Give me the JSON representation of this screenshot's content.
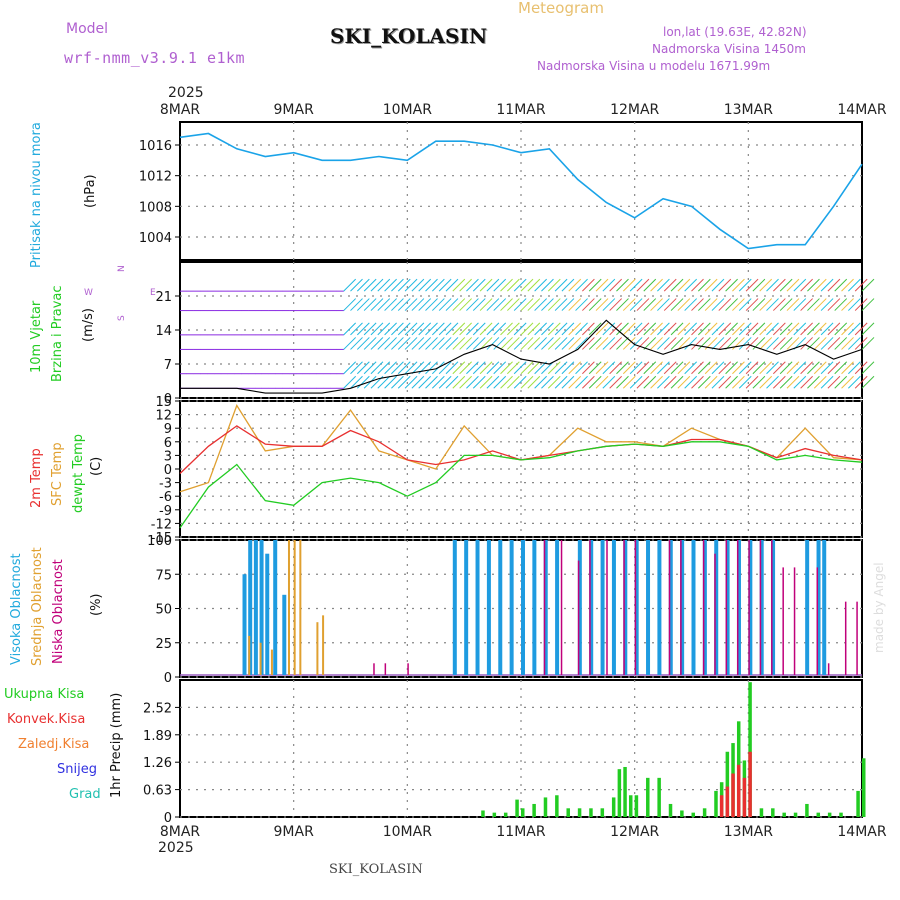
{
  "header": {
    "title": "SKI_KOLASIN",
    "subtitle": "Meteogram",
    "model_label": "Model",
    "model_name": "wrf-nmm_v3.9.1 e1km",
    "lonlat": "lon,lat (19.63E, 42.82N)",
    "elevation": "Nadmorska Visina 1450m",
    "model_elevation": "Nadmorska Visina u modelu 1671.99m",
    "year_top": "2025",
    "year_bottom": "2025",
    "footer": "SKI_KOLASIN",
    "credit": "made by Angel"
  },
  "x_axis": {
    "labels": [
      "8MAR",
      "9MAR",
      "10MAR",
      "11MAR",
      "12MAR",
      "13MAR",
      "14MAR"
    ]
  },
  "panels": {
    "pressure": {
      "label": "Pritisak na nivou mora",
      "unit": "(hPa)"
    },
    "wind": {
      "label1": "10m Vjetar",
      "label2": "Brzina i Pravac",
      "unit": "(m/s)",
      "compass_w": "W",
      "compass_e": "E",
      "compass_n": "N",
      "compass_s": "S"
    },
    "temp": {
      "label1": "2m Temp",
      "label2": "SFC Temp",
      "label3": "dewpt Temp",
      "unit": "(C)"
    },
    "cloud": {
      "label1": "Visoka Oblacnost",
      "label2": "Srednja Oblacnost",
      "label3": "Niska Oblacnost",
      "unit": "(%)"
    },
    "precip": {
      "unit": "1hr Precip (mm)",
      "legend": [
        "Ukupna Kisa",
        "Konvek.Kisa",
        "Zaledj.Kisa",
        "Snijeg",
        "Grad"
      ]
    }
  },
  "colors": {
    "pressure": "#1aa3e8",
    "t2m": "#e83030",
    "sfc": "#e0a030",
    "dew": "#22cc22",
    "high_cloud": "#1e9be0",
    "mid_cloud": "#e0a030",
    "low_cloud": "#c0007a",
    "total_rain": "#22cc22",
    "conv_rain": "#e83030",
    "frz_rain": "#f08030",
    "snow": "#3030e0",
    "hail": "#20c0b0",
    "wind_speed": "#000000"
  },
  "chart_data": [
    {
      "type": "line",
      "title": "",
      "ylabel": "Pritisak na nivou mora (hPa)",
      "ylim": [
        1001,
        1019
      ],
      "yticks": [
        1004,
        1008,
        1012,
        1016
      ],
      "x_days": [
        0,
        0.25,
        0.5,
        0.75,
        1,
        1.25,
        1.5,
        1.75,
        2,
        2.25,
        2.5,
        2.75,
        3,
        3.25,
        3.5,
        3.75,
        4,
        4.25,
        4.5,
        4.75,
        5,
        5.25,
        5.5,
        5.75,
        6
      ],
      "series": [
        {
          "name": "",
          "values": [
            1017,
            1017.5,
            1015.5,
            1014.5,
            1015,
            1014,
            1014,
            1014.5,
            1014,
            1016.5,
            1016.5,
            1016,
            1015,
            1015.5,
            1011.5,
            1008.5,
            1006.5,
            1009,
            1008,
            1005,
            1002.5,
            1003,
            1003,
            1008,
            1013.5
          ]
        }
      ]
    },
    {
      "type": "line",
      "title": "",
      "ylabel": "10m Vjetar Brzina i Pravac (m/s)",
      "ylim": [
        0,
        28
      ],
      "yticks": [
        0,
        7,
        14,
        21
      ],
      "x_days": [
        0,
        0.25,
        0.5,
        0.75,
        1,
        1.25,
        1.5,
        1.75,
        2,
        2.25,
        2.5,
        2.75,
        3,
        3.25,
        3.5,
        3.75,
        4,
        4.25,
        4.5,
        4.75,
        5,
        5.25,
        5.5,
        5.75,
        6
      ],
      "series": [
        {
          "name": "",
          "values": [
            2,
            2,
            2,
            1,
            1,
            1,
            2,
            4,
            5,
            6,
            9,
            11,
            8,
            7,
            10,
            16,
            11,
            9,
            11,
            10,
            11,
            9,
            11,
            8,
            10
          ]
        }
      ]
    },
    {
      "type": "line",
      "title": "",
      "ylabel": "Temp (C)",
      "ylim": [
        -15,
        15
      ],
      "yticks": [
        -15,
        -12,
        -9,
        -6,
        -3,
        0,
        3,
        6,
        9,
        12,
        15
      ],
      "x_days": [
        0,
        0.25,
        0.5,
        0.75,
        1,
        1.25,
        1.5,
        1.75,
        2,
        2.25,
        2.5,
        2.75,
        3,
        3.25,
        3.5,
        3.75,
        4,
        4.25,
        4.5,
        4.75,
        5,
        5.25,
        5.5,
        5.75,
        6
      ],
      "series": [
        {
          "name": "2m Temp",
          "values": [
            -1,
            5,
            9.5,
            5.5,
            5,
            5,
            8.5,
            6,
            2,
            1,
            2,
            4,
            2,
            3,
            4,
            5,
            5.5,
            5,
            6.5,
            6.5,
            5,
            2.5,
            4.5,
            3,
            2
          ]
        },
        {
          "name": "SFC Temp",
          "values": [
            -5,
            -3,
            14,
            4,
            5,
            5,
            13,
            4,
            2,
            0,
            9.5,
            3,
            2,
            3,
            9,
            6,
            6,
            5,
            9,
            6.5,
            5,
            2.5,
            9,
            2.5,
            2
          ]
        },
        {
          "name": "dewpt Temp",
          "values": [
            -13,
            -4,
            1,
            -7,
            -8,
            -3,
            -2,
            -3,
            -6,
            -3,
            3,
            3,
            2,
            2.5,
            4,
            5,
            5.5,
            5,
            6,
            6,
            5,
            2,
            3,
            2,
            1.5
          ]
        }
      ]
    },
    {
      "type": "bar",
      "title": "",
      "ylabel": "Oblacnost (%)",
      "ylim": [
        0,
        100
      ],
      "yticks": [
        0,
        25,
        50,
        75,
        100
      ],
      "series": [
        {
          "name": "Visoka Oblacnost",
          "x_days": [
            0.55,
            0.6,
            0.65,
            0.7,
            0.75,
            0.82,
            0.9,
            2.4,
            2.5,
            2.6,
            2.7,
            2.8,
            2.9,
            3.0,
            3.1,
            3.2,
            3.3,
            3.5,
            3.6,
            3.7,
            3.8,
            3.9,
            4.0,
            4.1,
            4.2,
            4.3,
            4.4,
            4.5,
            4.6,
            4.7,
            4.8,
            4.9,
            5.0,
            5.1,
            5.2,
            5.5,
            5.6,
            5.65
          ],
          "values": [
            75,
            100,
            100,
            100,
            90,
            100,
            60,
            100,
            100,
            100,
            100,
            100,
            100,
            100,
            100,
            100,
            100,
            100,
            100,
            100,
            100,
            100,
            100,
            100,
            100,
            100,
            100,
            100,
            100,
            100,
            100,
            100,
            100,
            100,
            100,
            100,
            100,
            100
          ]
        },
        {
          "name": "Srednja Oblacnost",
          "x_days": [
            0.6,
            0.7,
            0.8,
            0.95,
            1.0,
            1.05,
            1.2,
            1.25
          ],
          "values": [
            30,
            25,
            20,
            100,
            100,
            100,
            40,
            45
          ]
        },
        {
          "name": "Niska Oblacnost",
          "x_days": [
            1.7,
            1.8,
            2.0,
            3.2,
            3.35,
            3.5,
            3.6,
            3.75,
            3.9,
            4.0,
            4.3,
            4.4,
            4.6,
            4.7,
            4.8,
            4.9,
            5.0,
            5.1,
            5.2,
            5.3,
            5.4,
            5.6,
            5.7,
            5.85,
            5.95
          ],
          "values": [
            10,
            10,
            10,
            100,
            100,
            85,
            100,
            100,
            100,
            100,
            100,
            100,
            100,
            90,
            100,
            100,
            100,
            100,
            100,
            80,
            80,
            80,
            10,
            55,
            55
          ]
        }
      ]
    },
    {
      "type": "bar",
      "title": "",
      "ylabel": "1hr Precip (mm)",
      "ylim": [
        0,
        3.15
      ],
      "yticks": [
        0,
        0.63,
        1.26,
        1.89,
        2.52
      ],
      "series": [
        {
          "name": "Ukupna Kisa",
          "x_days": [
            2.65,
            2.75,
            2.85,
            2.95,
            3.0,
            3.1,
            3.2,
            3.3,
            3.4,
            3.5,
            3.6,
            3.7,
            3.8,
            3.85,
            3.9,
            3.95,
            4.0,
            4.1,
            4.2,
            4.3,
            4.4,
            4.5,
            4.6,
            4.7,
            4.75,
            4.8,
            4.85,
            4.9,
            4.95,
            5.0,
            5.1,
            5.2,
            5.3,
            5.4,
            5.5,
            5.6,
            5.7,
            5.8,
            5.95,
            6.0
          ],
          "values": [
            0.15,
            0.1,
            0.1,
            0.4,
            0.2,
            0.3,
            0.45,
            0.5,
            0.2,
            0.2,
            0.2,
            0.2,
            0.45,
            1.1,
            1.15,
            0.5,
            0.5,
            0.9,
            0.9,
            0.3,
            0.15,
            0.1,
            0.2,
            0.6,
            0.8,
            1.5,
            1.7,
            2.2,
            1.3,
            3.1,
            0.2,
            0.2,
            0.1,
            0.1,
            0.3,
            0.1,
            0.1,
            0.1,
            0.6,
            1.35
          ]
        },
        {
          "name": "Konvek.Kisa",
          "x_days": [
            4.75,
            4.8,
            4.85,
            4.9,
            4.95,
            5.0
          ],
          "values": [
            0.5,
            0.7,
            1.0,
            1.2,
            0.9,
            1.5
          ]
        }
      ]
    }
  ]
}
